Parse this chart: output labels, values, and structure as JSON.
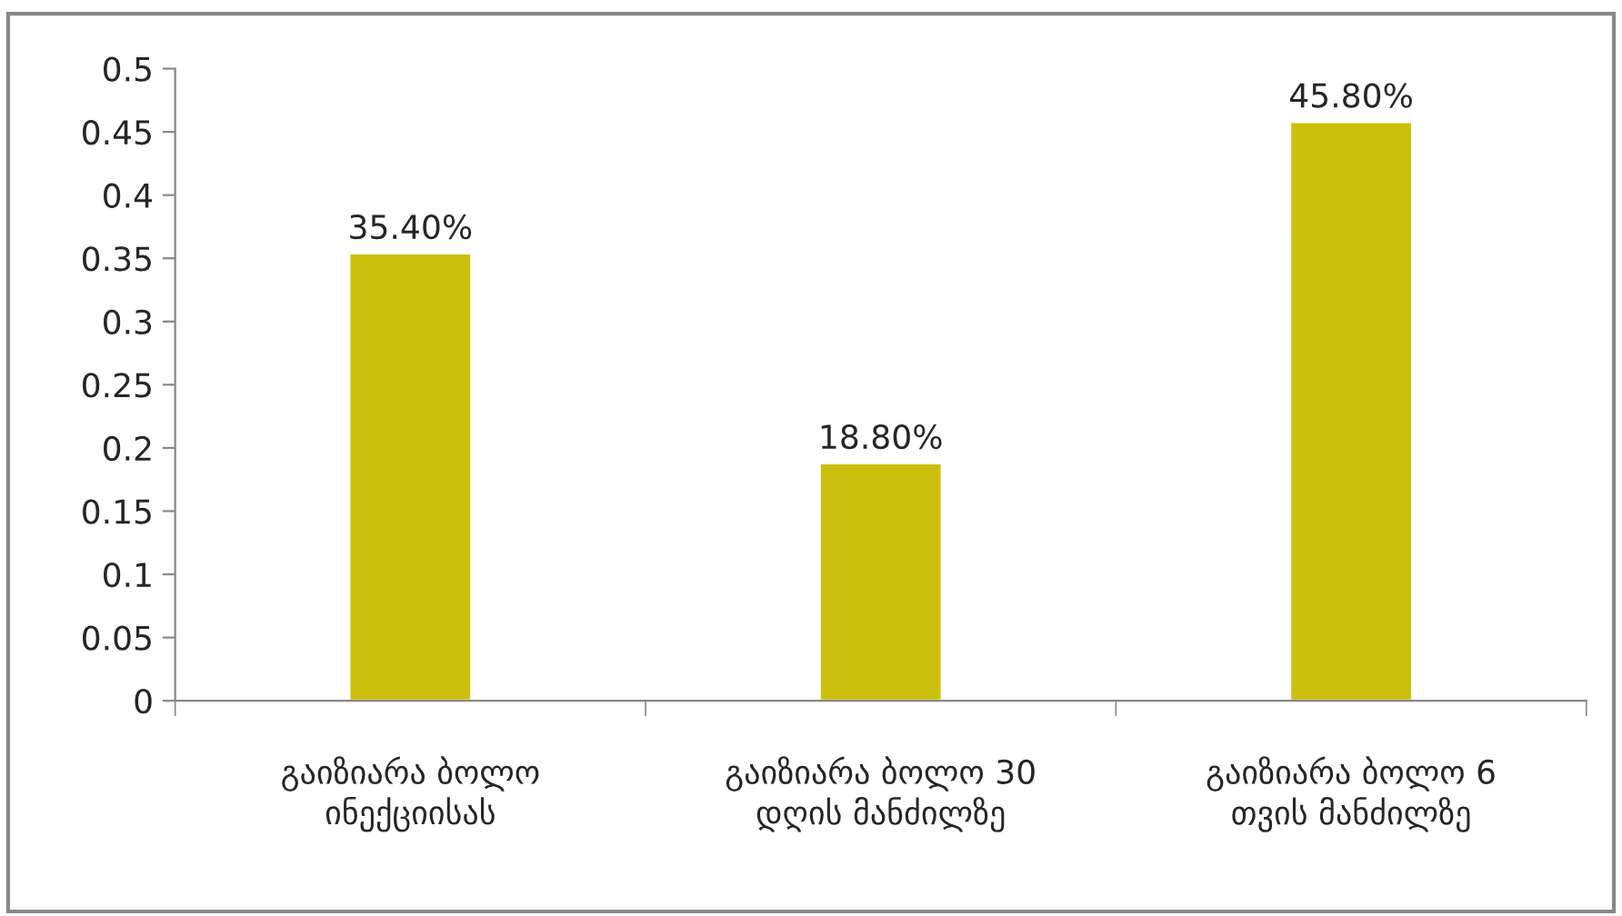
{
  "chart_data": {
    "type": "bar",
    "categories": [
      "გაიზიარა ბოლო ინექციისას",
      "გაიზიარა ბოლო 30 დღის მანძილზე",
      "გაიზიარა ბოლო 6 თვის მანძილზე"
    ],
    "values": [
      0.354,
      0.188,
      0.458
    ],
    "value_labels": [
      "35.40%",
      "18.80%",
      "45.80%"
    ],
    "color": "#ccc00e",
    "ylim": [
      0,
      0.5
    ],
    "yticks": [
      0,
      0.05,
      0.1,
      0.15,
      0.2,
      0.25,
      0.3,
      0.35,
      0.4,
      0.45,
      0.5
    ],
    "grid": false
  }
}
